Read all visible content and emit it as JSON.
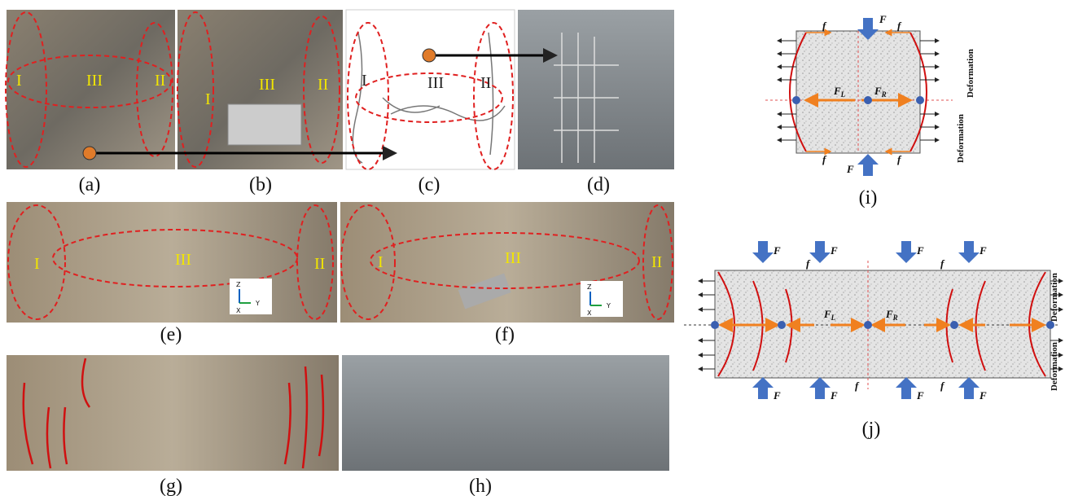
{
  "panel_labels": [
    "(a)",
    "(b)",
    "(c)",
    "(d)",
    "(e)",
    "(f)",
    "(g)",
    "(h)",
    "(i)",
    "(j)"
  ],
  "zone_labels": {
    "left": "I",
    "right": "II",
    "middle": "III"
  },
  "axis_labels": {
    "z": "Z",
    "y": "Y",
    "x": "X"
  },
  "diagram": {
    "force": "F",
    "friction": "f",
    "force_left": {
      "symbol": "F",
      "subscript": "L"
    },
    "force_right": {
      "symbol": "F",
      "subscript": "R"
    },
    "deformation": "Deformation"
  }
}
